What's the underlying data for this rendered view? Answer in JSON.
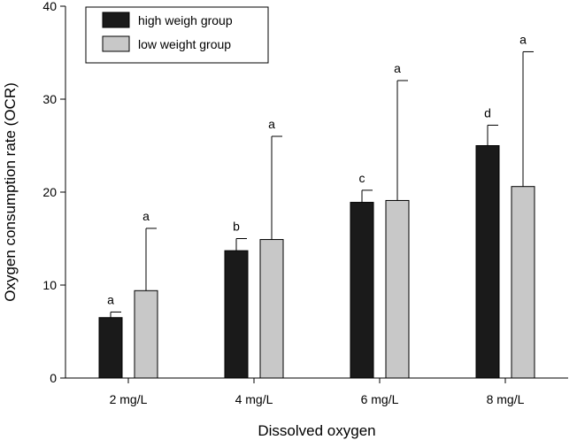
{
  "chart_data": {
    "type": "bar",
    "categories": [
      "2 mg/L",
      "4 mg/L",
      "6 mg/L",
      "8 mg/L"
    ],
    "series": [
      {
        "name": "high weigh group",
        "color": "#1a1a1a",
        "values": [
          6.5,
          13.7,
          18.9,
          25.0
        ],
        "error_upper": [
          7.1,
          15.0,
          20.2,
          27.2
        ],
        "significance": [
          "a",
          "b",
          "c",
          "d"
        ]
      },
      {
        "name": "low weight group",
        "color": "#c8c8c8",
        "values": [
          9.4,
          14.9,
          19.1,
          20.6
        ],
        "error_upper": [
          16.1,
          26.0,
          32.0,
          35.1
        ],
        "significance": [
          "a",
          "a",
          "a",
          "a"
        ]
      }
    ],
    "ylim": [
      0,
      40
    ],
    "yticks": [
      0,
      10,
      20,
      30,
      40
    ],
    "xlabel": "Dissolved oxygen",
    "ylabel": "Oxygen consumption rate (OCR)",
    "legend": "top-left",
    "grid": false
  }
}
